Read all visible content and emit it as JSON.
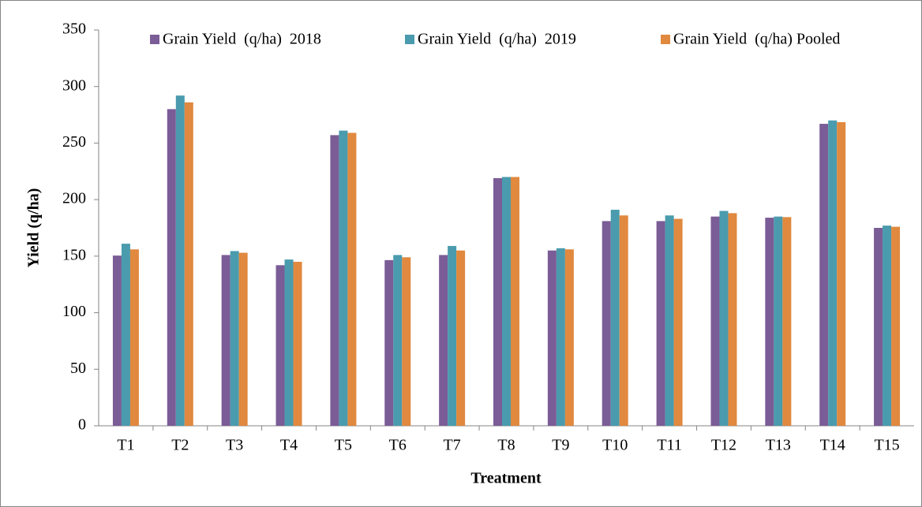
{
  "chart_data": {
    "type": "bar",
    "y_label": "Yield (q/ha)",
    "x_label": "Treatment",
    "categories": [
      "T1",
      "T2",
      "T3",
      "T4",
      "T5",
      "T6",
      "T7",
      "T8",
      "T9",
      "T10",
      "T11",
      "T12",
      "T13",
      "T14",
      "T15"
    ],
    "series": [
      {
        "name": "Grain Yield  (q/ha)  2018",
        "color": "#7a5c96",
        "values": [
          150.5,
          280,
          151,
          142,
          257,
          146.5,
          151,
          219,
          155,
          181,
          181,
          185,
          184,
          267,
          175
        ]
      },
      {
        "name": "Grain Yield  (q/ha)  2019",
        "color": "#4a9bad",
        "values": [
          161,
          292,
          154.5,
          147,
          261,
          151,
          159,
          220,
          157,
          191,
          186,
          190,
          185,
          270,
          177
        ]
      },
      {
        "name": "Grain Yield  (q/ha) Pooled",
        "color": "#e0893f",
        "values": [
          156,
          286,
          153,
          145,
          259,
          149,
          155,
          220,
          156,
          186,
          183,
          188,
          184.5,
          268.5,
          176
        ]
      }
    ],
    "ylim": [
      0,
      350
    ],
    "yticks": [
      0,
      50,
      100,
      150,
      200,
      250,
      300,
      350
    ],
    "legend": "top"
  }
}
